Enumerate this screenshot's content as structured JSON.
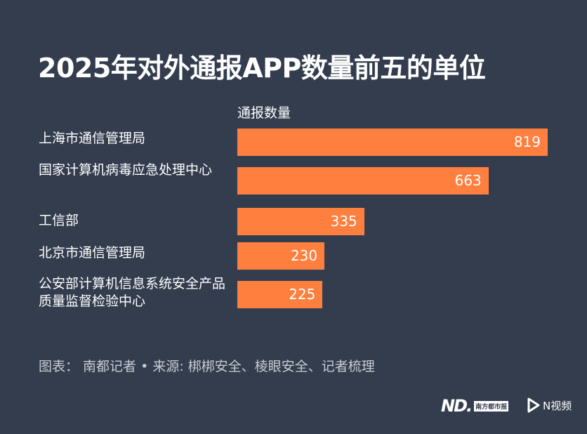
{
  "chart_data": {
    "type": "bar",
    "orientation": "horizontal",
    "title": "2025年对外通报APP数量前五的单位",
    "series_name": "通报数量",
    "categories": [
      "上海市通信管理局",
      "国家计算机病毒应急处理中心",
      "工信部",
      "北京市通信管理局",
      "公安部计算机信息系统安全产品质量监督检验中心"
    ],
    "values": [
      819,
      663,
      335,
      230,
      225
    ],
    "xlim": [
      0,
      819
    ],
    "grid": false,
    "bar_color": "#ff7f3f"
  },
  "footer": {
    "source": "图表： 南都记者 • 来源: 梆梆安全、棱眼安全、记者梳理"
  },
  "logos": {
    "nd": "ND.",
    "nandu": "南方都市报",
    "nvideo": "N视频"
  },
  "colors": {
    "background": "#333d4e",
    "bar": "#ff7f3f"
  }
}
